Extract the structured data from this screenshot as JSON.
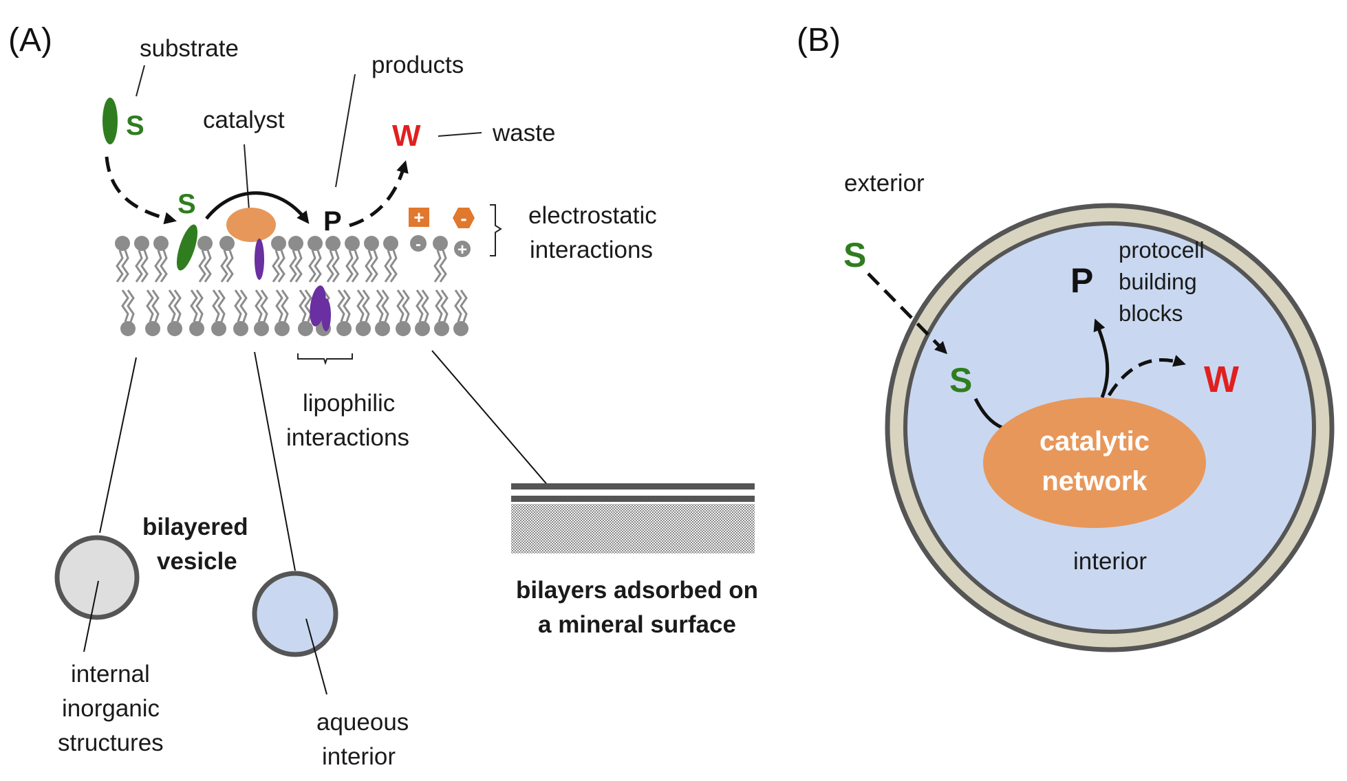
{
  "colors": {
    "substrate": "#2f7d1f",
    "waste": "#e02020",
    "catalyst": "#e8975a",
    "lipophilic": "#6a2fa0",
    "lipid": "#8c8c8c",
    "vesicle_fill": "#dedede",
    "aqueous_fill": "#c9d8f0",
    "membrane_outer": "#d8d4c0",
    "ring_stroke": "#555555"
  },
  "panel_a": {
    "label": "(A)",
    "substrate_label": "substrate",
    "substrate_symbol": "S",
    "substrate_symbol_membrane": "S",
    "catalyst_label": "catalyst",
    "products_label": "products",
    "product_symbol": "P",
    "waste_symbol": "W",
    "waste_label": "waste",
    "electrostatic_label": [
      "electrostatic",
      "interactions"
    ],
    "charge_plus": "+",
    "charge_minus": "-",
    "lipophilic_label": [
      "lipophilic",
      "interactions"
    ],
    "vesicle_label": [
      "bilayered",
      "vesicle"
    ],
    "internal_label": [
      "internal",
      "inorganic",
      "structures"
    ],
    "aqueous_label": [
      "aqueous",
      "interior"
    ],
    "mineral_label": [
      "bilayers adsorbed on",
      "a mineral surface"
    ]
  },
  "panel_b": {
    "label": "(B)",
    "exterior_label": "exterior",
    "interior_label": "interior",
    "substrate_symbol_out": "S",
    "substrate_symbol_in": "S",
    "product_symbol": "P",
    "waste_symbol": "W",
    "building_blocks_label": [
      "protocell",
      "building",
      "blocks"
    ],
    "network_label": [
      "catalytic",
      "network"
    ]
  }
}
